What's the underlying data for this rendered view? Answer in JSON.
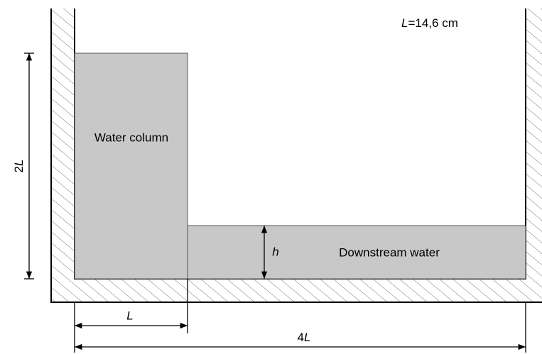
{
  "annotation": {
    "symbol": "L",
    "value": "=14,6 cm"
  },
  "regions": {
    "column": "Water column",
    "downstream": "Downstream water"
  },
  "dimensions": {
    "column_height": {
      "factor": "2",
      "symbol": "L"
    },
    "water_depth": {
      "symbol": "h"
    },
    "column_width": {
      "symbol": "L"
    },
    "tank_length": {
      "factor": "4",
      "symbol": "L"
    }
  }
}
